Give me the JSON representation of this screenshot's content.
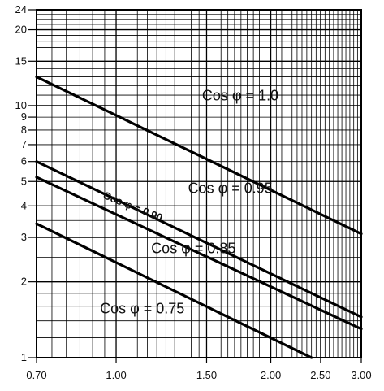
{
  "chart_data": {
    "type": "line",
    "title": "",
    "xlabel": "",
    "ylabel": "",
    "x_scale": "log",
    "y_scale": "log",
    "xlim": [
      0.7,
      3.0
    ],
    "ylim": [
      1,
      24
    ],
    "grid": true,
    "x_ticks": [
      {
        "value": 0.7,
        "label": "0.70"
      },
      {
        "value": 1.0,
        "label": "1.00"
      },
      {
        "value": 1.5,
        "label": "1.50"
      },
      {
        "value": 2.0,
        "label": "2.00"
      },
      {
        "value": 2.5,
        "label": "2.50"
      },
      {
        "value": 3.0,
        "label": "3.00"
      }
    ],
    "y_ticks": [
      {
        "value": 1,
        "label": "1"
      },
      {
        "value": 2,
        "label": "2"
      },
      {
        "value": 3,
        "label": "3"
      },
      {
        "value": 4,
        "label": "4"
      },
      {
        "value": 5,
        "label": "5"
      },
      {
        "value": 6,
        "label": "6"
      },
      {
        "value": 7,
        "label": "7"
      },
      {
        "value": 8,
        "label": "8"
      },
      {
        "value": 9,
        "label": "9"
      },
      {
        "value": 10,
        "label": "10"
      },
      {
        "value": 15,
        "label": "15"
      },
      {
        "value": 20,
        "label": "20"
      },
      {
        "value": 24,
        "label": "24"
      }
    ],
    "series": [
      {
        "name": "Cos φ = 1.0",
        "x": [
          0.7,
          3.0
        ],
        "y": [
          13.0,
          3.1
        ]
      },
      {
        "name": "Cos φ = 0.95",
        "x": [
          0.7,
          3.0
        ],
        "y": [
          6.0,
          1.45
        ]
      },
      {
        "name": "Cos φ = 0.90",
        "x": [
          0.7,
          3.0
        ],
        "y": [
          5.2,
          1.3
        ]
      },
      {
        "name": "Cos φ = 0.85",
        "x": [
          0.7,
          2.4
        ],
        "y": [
          3.4,
          1.0
        ]
      }
    ],
    "annotations": [
      {
        "text": "Cos φ = 1.0",
        "x": 1.47,
        "y": 10.5
      },
      {
        "text": "Cos φ = 0.95",
        "x": 1.38,
        "y": 4.5
      },
      {
        "text": "Cos φ = 0.90",
        "x": 0.94,
        "y": 4.3
      },
      {
        "text": "Cos φ = 0.85",
        "x": 1.17,
        "y": 2.6
      },
      {
        "text": "Cos φ = 0.75",
        "x": 0.93,
        "y": 1.5
      }
    ]
  }
}
